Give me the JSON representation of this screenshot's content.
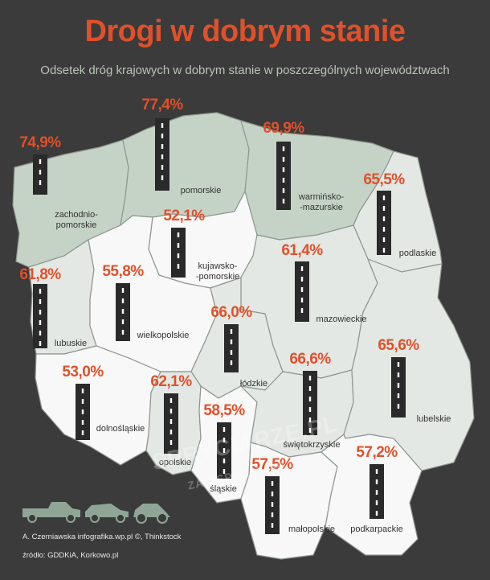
{
  "title": "Drogi w dobrym stanie",
  "subtitle": "Odsetek dróg krajowych w dobrym stanie w poszczególnych województwach",
  "colors": {
    "background": "#3b3b3b",
    "accent": "#e0502a",
    "region_high": "#c5d3c6",
    "region_mid": "#e3e8e4",
    "region_low": "#f7f8f7",
    "road": "#2a2a2a"
  },
  "regions": [
    {
      "id": "zachodniopomorskie",
      "name_lines": [
        "zachodnio-",
        "pomorskie"
      ],
      "value": "74,9%",
      "num": 74.9
    },
    {
      "id": "pomorskie",
      "name_lines": [
        "pomorskie"
      ],
      "value": "77,4%",
      "num": 77.4
    },
    {
      "id": "warminsko-mazurskie",
      "name_lines": [
        "warmińsko-",
        "-mazurskie"
      ],
      "value": "69,9%",
      "num": 69.9
    },
    {
      "id": "podlaskie",
      "name_lines": [
        "podlaskie"
      ],
      "value": "65,5%",
      "num": 65.5
    },
    {
      "id": "kujawsko-pomorskie",
      "name_lines": [
        "kujawsko-",
        "-pomorskie"
      ],
      "value": "52,1%",
      "num": 52.1
    },
    {
      "id": "lubuskie",
      "name_lines": [
        "lubuskie"
      ],
      "value": "61,8%",
      "num": 61.8
    },
    {
      "id": "wielkopolskie",
      "name_lines": [
        "wielkopolskie"
      ],
      "value": "55,8%",
      "num": 55.8
    },
    {
      "id": "mazowieckie",
      "name_lines": [
        "mazowieckie"
      ],
      "value": "61,4%",
      "num": 61.4
    },
    {
      "id": "lodzkie",
      "name_lines": [
        "łódzkie"
      ],
      "value": "66,0%",
      "num": 66.0
    },
    {
      "id": "dolnoslaskie",
      "name_lines": [
        "dolnośląskie"
      ],
      "value": "53,0%",
      "num": 53.0
    },
    {
      "id": "opolskie",
      "name_lines": [
        "opolskie"
      ],
      "value": "62,1%",
      "num": 62.1
    },
    {
      "id": "slaskie",
      "name_lines": [
        "śląskie"
      ],
      "value": "58,5%",
      "num": 58.5
    },
    {
      "id": "swietokrzyskie",
      "name_lines": [
        "świętokrzyskie"
      ],
      "value": "66,6%",
      "num": 66.6
    },
    {
      "id": "lubelskie",
      "name_lines": [
        "lubelskie"
      ],
      "value": "65,6%",
      "num": 65.6
    },
    {
      "id": "malopolskie",
      "name_lines": [
        "małopolskie"
      ],
      "value": "57,5%",
      "num": 57.5
    },
    {
      "id": "podkarpackie",
      "name_lines": [
        "podkarpackie"
      ],
      "value": "57,2%",
      "num": 57.2
    }
  ],
  "credits": {
    "author": "A. Czerniawska infografika.wp.pl ©, Thinkstock",
    "source": "źródło: GDDKiA, Korkowo.pl"
  },
  "watermark": {
    "line1": "SPRYCIARZE.PL",
    "line2": "ZAINSPIRUJ SIĘ"
  }
}
